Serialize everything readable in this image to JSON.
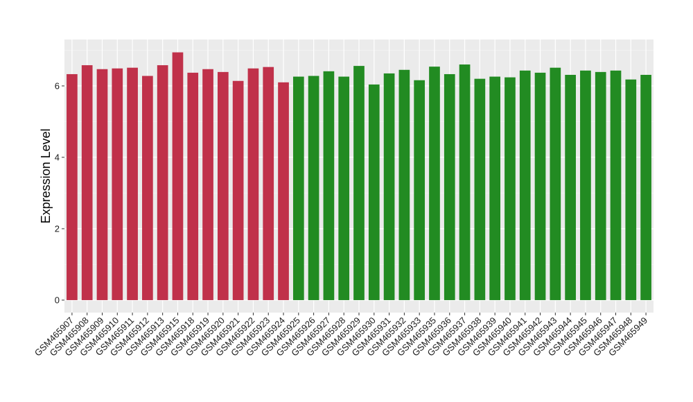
{
  "chart_data": {
    "type": "bar",
    "title": "",
    "xlabel": "",
    "ylabel": "Expression Level",
    "ylim": [
      -0.35,
      7.3
    ],
    "yticks": [
      0,
      2,
      4,
      6
    ],
    "grid": true,
    "legend": "none",
    "categories": [
      "GSM465907",
      "GSM465908",
      "GSM465909",
      "GSM465910",
      "GSM465911",
      "GSM465912",
      "GSM465913",
      "GSM465915",
      "GSM465918",
      "GSM465919",
      "GSM465920",
      "GSM465921",
      "GSM465922",
      "GSM465923",
      "GSM465924",
      "GSM465925",
      "GSM465926",
      "GSM465927",
      "GSM465928",
      "GSM465929",
      "GSM465930",
      "GSM465931",
      "GSM465932",
      "GSM465933",
      "GSM465935",
      "GSM465936",
      "GSM465937",
      "GSM465938",
      "GSM465939",
      "GSM465940",
      "GSM465941",
      "GSM465942",
      "GSM465943",
      "GSM465944",
      "GSM465945",
      "GSM465946",
      "GSM465947",
      "GSM465948",
      "GSM465949"
    ],
    "values": [
      6.33,
      6.58,
      6.47,
      6.49,
      6.51,
      6.28,
      6.58,
      6.94,
      6.37,
      6.47,
      6.39,
      6.14,
      6.49,
      6.53,
      6.1,
      6.26,
      6.28,
      6.41,
      6.26,
      6.56,
      6.04,
      6.35,
      6.45,
      6.16,
      6.54,
      6.33,
      6.6,
      6.2,
      6.26,
      6.24,
      6.43,
      6.37,
      6.51,
      6.31,
      6.43,
      6.39,
      6.43,
      6.18,
      6.31
    ],
    "groups": [
      {
        "color": "#C0314A",
        "count": 15
      },
      {
        "color": "#228B22",
        "count": 24
      }
    ]
  },
  "style": {
    "panel_background": "#EBEBEB",
    "grid_major": "#FFFFFF",
    "grid_minor": "#F5F5F5"
  }
}
